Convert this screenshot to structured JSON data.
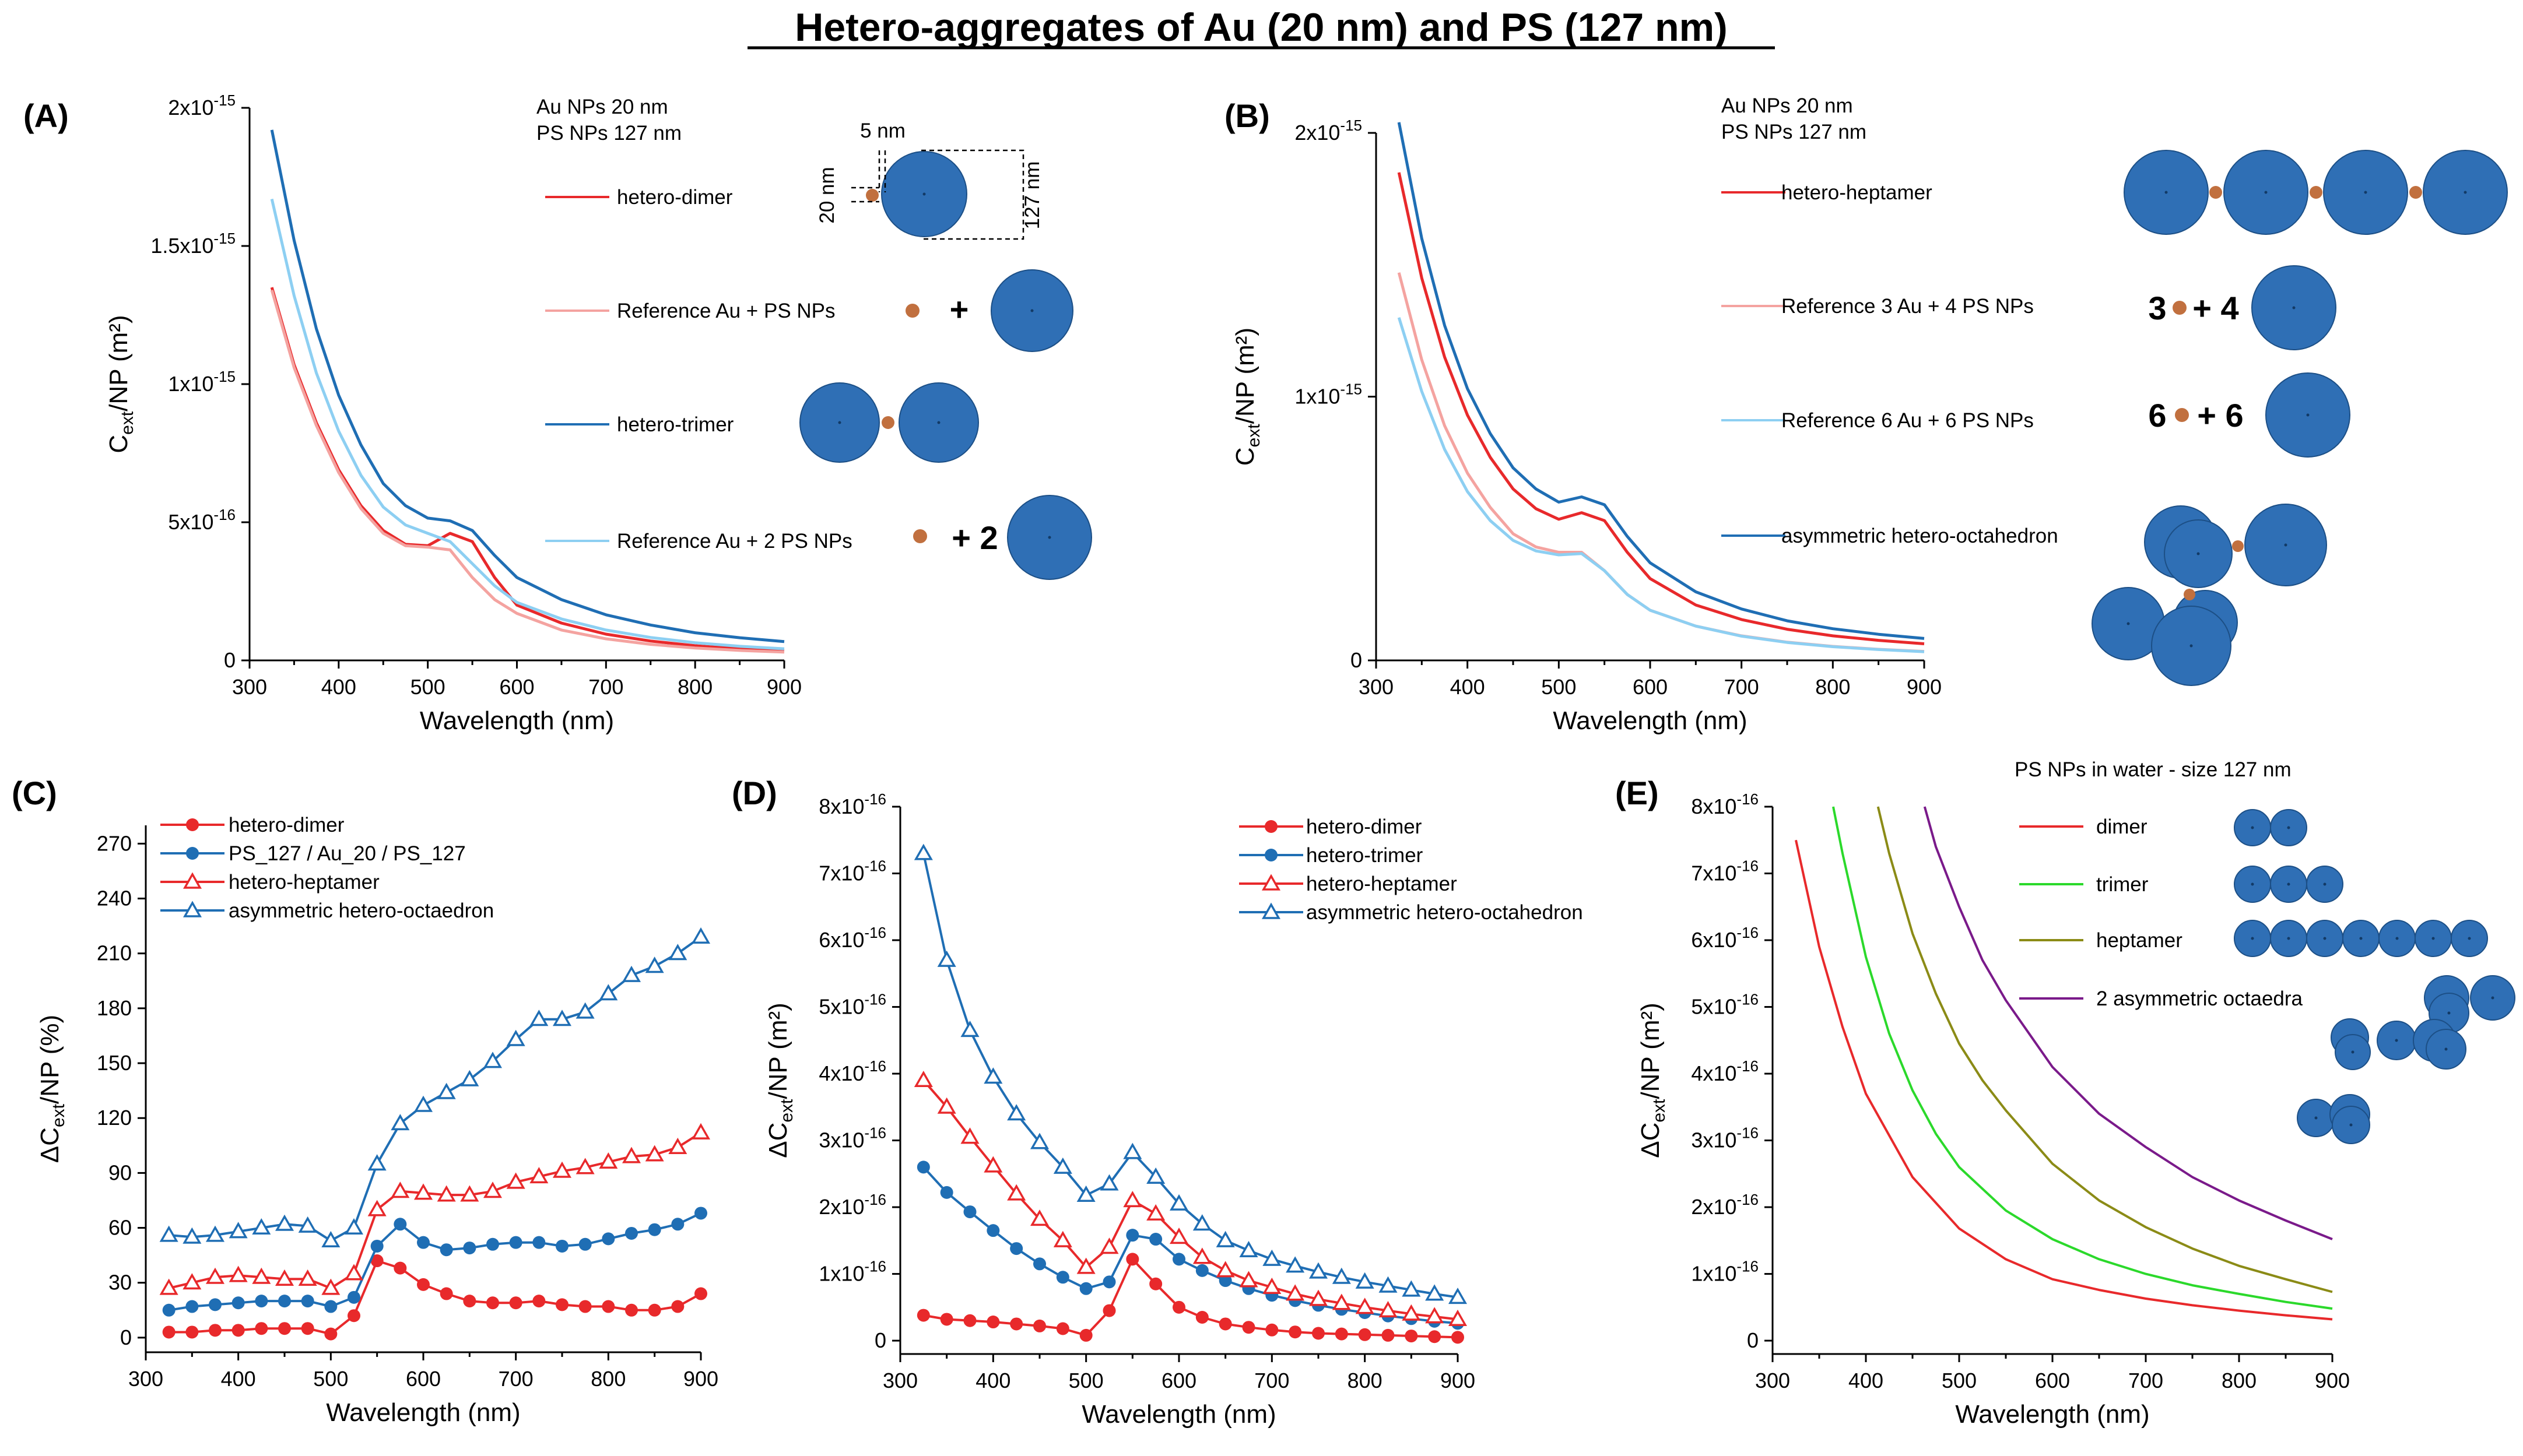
{
  "title": "Hetero-aggregates of Au (20 nm) and PS (127 nm)",
  "colors": {
    "red": "#e8292b",
    "pink": "#f4a3a0",
    "blue": "#1f6eb4",
    "lightblue": "#8dcff2",
    "green": "#2bd92b",
    "olive": "#8b8b16",
    "purple": "#7a1a8a",
    "sphere": "#2f6fb5",
    "au": "#c1703f"
  },
  "chart_data": [
    {
      "panel": "(A)",
      "type": "line",
      "xlabel": "Wavelength (nm)",
      "ylabel": "C_ext/NP (m²)",
      "xlim": [
        300,
        900
      ],
      "ylim": [
        0,
        2e-15
      ],
      "xticks": [
        300,
        400,
        500,
        600,
        700,
        800,
        900
      ],
      "yticks": [
        {
          "value": 0,
          "mant": "0",
          "exp": ""
        },
        {
          "value": 5e-16,
          "mant": "5x10",
          "exp": "-16"
        },
        {
          "value": 1e-15,
          "mant": "1x10",
          "exp": "-15"
        },
        {
          "value": 1.5e-15,
          "mant": "1.5x10",
          "exp": "-15"
        },
        {
          "value": 2e-15,
          "mant": "2x10",
          "exp": "-15"
        }
      ],
      "info": [
        "Au NPs 20 nm",
        "PS NPs 127 nm"
      ],
      "dims": [
        "5 nm",
        "20 nm",
        "127 nm"
      ],
      "legend": [
        "hetero-dimer",
        "Reference Au + PS NPs",
        "hetero-trimer",
        "Reference Au + 2 PS NPs"
      ],
      "insets": {
        "plus": "+",
        "plus2": "+ 2"
      },
      "x": [
        325,
        350,
        375,
        400,
        425,
        450,
        475,
        500,
        525,
        550,
        575,
        600,
        650,
        700,
        750,
        800,
        850,
        900
      ],
      "series": [
        {
          "name": "hetero-dimer",
          "color": "red",
          "values": [
            1.35e-15,
            1.07e-15,
            8.6e-16,
            6.9e-16,
            5.6e-16,
            4.7e-16,
            4.2e-16,
            4.15e-16,
            4.6e-16,
            4.3e-16,
            3e-16,
            2e-16,
            1.35e-16,
            9.5e-17,
            7e-17,
            5.3e-17,
            4.2e-17,
            3.5e-17
          ]
        },
        {
          "name": "Reference Au + PS NPs",
          "color": "pink",
          "values": [
            1.34e-15,
            1.06e-15,
            8.5e-16,
            6.8e-16,
            5.5e-16,
            4.6e-16,
            4.15e-16,
            4.1e-16,
            4e-16,
            3e-16,
            2.2e-16,
            1.7e-16,
            1.1e-16,
            7.8e-17,
            5.8e-17,
            4.5e-17,
            3.6e-17,
            3e-17
          ]
        },
        {
          "name": "hetero-trimer",
          "color": "blue",
          "values": [
            1.92e-15,
            1.52e-15,
            1.2e-15,
            9.6e-16,
            7.8e-16,
            6.4e-16,
            5.6e-16,
            5.15e-16,
            5.05e-16,
            4.7e-16,
            3.8e-16,
            3e-16,
            2.2e-16,
            1.65e-16,
            1.28e-16,
            1e-16,
            8.2e-17,
            6.8e-17
          ]
        },
        {
          "name": "Reference Au + 2 PS NPs",
          "color": "lightblue",
          "values": [
            1.67e-15,
            1.32e-15,
            1.04e-15,
            8.3e-16,
            6.7e-16,
            5.55e-16,
            4.9e-16,
            4.6e-16,
            4.3e-16,
            3.5e-16,
            2.7e-16,
            2.1e-16,
            1.5e-16,
            1.1e-16,
            8.3e-17,
            6.4e-17,
            5.1e-17,
            4.2e-17
          ]
        }
      ]
    },
    {
      "panel": "(B)",
      "type": "line",
      "xlabel": "Wavelength (nm)",
      "ylabel": "C_ext/NP (m²)",
      "xlim": [
        300,
        900
      ],
      "ylim": [
        0,
        2e-15
      ],
      "xticks": [
        300,
        400,
        500,
        600,
        700,
        800,
        900
      ],
      "yticks": [
        {
          "value": 0,
          "mant": "0",
          "exp": ""
        },
        {
          "value": 1e-15,
          "mant": "1x10",
          "exp": "-15"
        },
        {
          "value": 2e-15,
          "mant": "2x10",
          "exp": "-15"
        }
      ],
      "info": [
        "Au NPs 20 nm",
        "PS NPs 127 nm"
      ],
      "legend": [
        "hetero-heptamer",
        "Reference 3 Au + 4 PS NPs",
        "Reference 6 Au + 6 PS NPs",
        "asymmetric hetero-octahedron"
      ],
      "insets": {
        "n3": "3",
        "p4": "+ 4",
        "n6": "6",
        "p6": "+ 6"
      },
      "x": [
        325,
        350,
        375,
        400,
        425,
        450,
        475,
        500,
        525,
        550,
        575,
        600,
        650,
        700,
        750,
        800,
        850,
        900
      ],
      "series": [
        {
          "name": "hetero-heptamer",
          "color": "red",
          "values": [
            1.85e-15,
            1.45e-15,
            1.15e-15,
            9.3e-16,
            7.7e-16,
            6.5e-16,
            5.75e-16,
            5.35e-16,
            5.6e-16,
            5.3e-16,
            4.1e-16,
            3.1e-16,
            2.1e-16,
            1.55e-16,
            1.18e-16,
            9.3e-17,
            7.6e-17,
            6.3e-17
          ]
        },
        {
          "name": "Reference 3 Au + 4 PS NPs",
          "color": "pink",
          "values": [
            1.47e-15,
            1.14e-15,
            8.9e-16,
            7.1e-16,
            5.8e-16,
            4.8e-16,
            4.3e-16,
            4.1e-16,
            4.1e-16,
            3.4e-16,
            2.5e-16,
            1.9e-16,
            1.3e-16,
            9.3e-17,
            6.9e-17,
            5.3e-17,
            4.2e-17,
            3.4e-17
          ]
        },
        {
          "name": "Reference 6 Au + 6 PS NPs",
          "color": "lightblue",
          "values": [
            1.3e-15,
            1.02e-15,
            8e-16,
            6.4e-16,
            5.3e-16,
            4.55e-16,
            4.15e-16,
            4e-16,
            4.05e-16,
            3.4e-16,
            2.5e-16,
            1.9e-16,
            1.3e-16,
            9.2e-17,
            6.8e-17,
            5.2e-17,
            4.1e-17,
            3.3e-17
          ]
        },
        {
          "name": "asymmetric hetero-octahedron",
          "color": "blue",
          "values": [
            2.04e-15,
            1.6e-15,
            1.27e-15,
            1.03e-15,
            8.6e-16,
            7.3e-16,
            6.5e-16,
            6e-16,
            6.2e-16,
            5.9e-16,
            4.7e-16,
            3.7e-16,
            2.6e-16,
            1.95e-16,
            1.5e-16,
            1.2e-16,
            9.9e-17,
            8.3e-17
          ]
        }
      ]
    },
    {
      "panel": "(C)",
      "type": "line",
      "xlabel": "Wavelength (nm)",
      "ylabel": "ΔC_ext/NP (%)",
      "xlim": [
        300,
        900
      ],
      "ylim": [
        -8,
        280
      ],
      "xticks": [
        300,
        400,
        500,
        600,
        700,
        800,
        900
      ],
      "yticks": [
        {
          "value": 0,
          "mant": "0",
          "exp": ""
        },
        {
          "value": 30,
          "mant": "30",
          "exp": ""
        },
        {
          "value": 60,
          "mant": "60",
          "exp": ""
        },
        {
          "value": 90,
          "mant": "90",
          "exp": ""
        },
        {
          "value": 120,
          "mant": "120",
          "exp": ""
        },
        {
          "value": 150,
          "mant": "150",
          "exp": ""
        },
        {
          "value": 180,
          "mant": "180",
          "exp": ""
        },
        {
          "value": 210,
          "mant": "210",
          "exp": ""
        },
        {
          "value": 240,
          "mant": "240",
          "exp": ""
        },
        {
          "value": 270,
          "mant": "270",
          "exp": ""
        }
      ],
      "legend": [
        "hetero-dimer",
        "PS_127 / Au_20 / PS_127",
        "hetero-heptamer",
        "asymmetric hetero-octaedron"
      ],
      "x": [
        325,
        350,
        375,
        400,
        425,
        450,
        475,
        500,
        525,
        550,
        575,
        600,
        625,
        650,
        675,
        700,
        725,
        750,
        775,
        800,
        825,
        850,
        875,
        900
      ],
      "series": [
        {
          "name": "hetero-dimer",
          "color": "red",
          "marker": "circle",
          "values": [
            3,
            3,
            4,
            4,
            5,
            5,
            5,
            2,
            12,
            42,
            38,
            29,
            24,
            20,
            19,
            19,
            20,
            18,
            17,
            17,
            15,
            15,
            17,
            24
          ]
        },
        {
          "name": "PS_127 / Au_20 / PS_127",
          "color": "blue",
          "marker": "circle",
          "values": [
            15,
            17,
            18,
            19,
            20,
            20,
            20,
            17,
            22,
            50,
            62,
            52,
            48,
            49,
            51,
            52,
            52,
            50,
            51,
            54,
            57,
            59,
            62,
            68
          ]
        },
        {
          "name": "hetero-heptamer",
          "color": "red",
          "marker": "triangle",
          "values": [
            27,
            30,
            33,
            34,
            33,
            32,
            32,
            27,
            35,
            70,
            80,
            79,
            78,
            78,
            80,
            85,
            88,
            91,
            93,
            96,
            99,
            100,
            104,
            112
          ]
        },
        {
          "name": "asymmetric hetero-octaedron",
          "color": "blue",
          "marker": "triangle",
          "values": [
            56,
            55,
            56,
            58,
            60,
            62,
            61,
            53,
            60,
            95,
            117,
            127,
            134,
            141,
            151,
            163,
            174,
            174,
            178,
            188,
            198,
            203,
            210,
            219
          ]
        }
      ]
    },
    {
      "panel": "(D)",
      "type": "line",
      "xlabel": "Wavelength (nm)",
      "ylabel": "ΔC_ext/NP (m²)",
      "xlim": [
        300,
        900
      ],
      "ylim": [
        -2e-17,
        8e-16
      ],
      "xticks": [
        300,
        400,
        500,
        600,
        700,
        800,
        900
      ],
      "yticks": [
        {
          "value": 0,
          "mant": "0",
          "exp": ""
        },
        {
          "value": 1e-16,
          "mant": "1x10",
          "exp": "-16"
        },
        {
          "value": 2e-16,
          "mant": "2x10",
          "exp": "-16"
        },
        {
          "value": 3e-16,
          "mant": "3x10",
          "exp": "-16"
        },
        {
          "value": 4e-16,
          "mant": "4x10",
          "exp": "-16"
        },
        {
          "value": 5e-16,
          "mant": "5x10",
          "exp": "-16"
        },
        {
          "value": 6e-16,
          "mant": "6x10",
          "exp": "-16"
        },
        {
          "value": 7e-16,
          "mant": "7x10",
          "exp": "-16"
        },
        {
          "value": 8e-16,
          "mant": "8x10",
          "exp": "-16"
        }
      ],
      "legend": [
        "hetero-dimer",
        "hetero-trimer",
        "hetero-heptamer",
        "asymmetric hetero-octahedron"
      ],
      "x": [
        325,
        350,
        375,
        400,
        425,
        450,
        475,
        500,
        525,
        550,
        575,
        600,
        625,
        650,
        675,
        700,
        725,
        750,
        775,
        800,
        825,
        850,
        875,
        900
      ],
      "series": [
        {
          "name": "hetero-dimer",
          "color": "red",
          "marker": "circle",
          "values": [
            3.8e-17,
            3.2e-17,
            3e-17,
            2.8e-17,
            2.5e-17,
            2.2e-17,
            1.8e-17,
            8e-18,
            4.5e-17,
            1.22e-16,
            8.5e-17,
            5e-17,
            3.5e-17,
            2.5e-17,
            2e-17,
            1.6e-17,
            1.3e-17,
            1.1e-17,
            1e-17,
            9e-18,
            8e-18,
            7e-18,
            6e-18,
            5e-18
          ]
        },
        {
          "name": "hetero-trimer",
          "color": "blue",
          "marker": "circle",
          "values": [
            2.6e-16,
            2.22e-16,
            1.93e-16,
            1.65e-16,
            1.38e-16,
            1.15e-16,
            9.5e-17,
            7.8e-17,
            8.8e-17,
            1.58e-16,
            1.52e-16,
            1.22e-16,
            1.05e-16,
            9e-17,
            7.8e-17,
            6.8e-17,
            6e-17,
            5.3e-17,
            4.7e-17,
            4.2e-17,
            3.7e-17,
            3.3e-17,
            2.9e-17,
            2.6e-17
          ]
        },
        {
          "name": "hetero-heptamer",
          "color": "red",
          "marker": "triangle",
          "values": [
            3.9e-16,
            3.5e-16,
            3.05e-16,
            2.62e-16,
            2.2e-16,
            1.82e-16,
            1.5e-16,
            1.1e-16,
            1.4e-16,
            2.1e-16,
            1.9e-16,
            1.55e-16,
            1.25e-16,
            1.05e-16,
            9e-17,
            8e-17,
            7e-17,
            6.2e-17,
            5.6e-17,
            5e-17,
            4.5e-17,
            4e-17,
            3.6e-17,
            3.2e-17
          ]
        },
        {
          "name": "asymmetric hetero-octahedron",
          "color": "blue",
          "marker": "triangle",
          "values": [
            7.3e-16,
            5.7e-16,
            4.65e-16,
            3.95e-16,
            3.4e-16,
            2.97e-16,
            2.6e-16,
            2.18e-16,
            2.35e-16,
            2.82e-16,
            2.45e-16,
            2.05e-16,
            1.75e-16,
            1.5e-16,
            1.35e-16,
            1.22e-16,
            1.12e-16,
            1.03e-16,
            9.5e-17,
            8.8e-17,
            8.2e-17,
            7.6e-17,
            7e-17,
            6.5e-17
          ]
        }
      ]
    },
    {
      "panel": "(E)",
      "type": "line",
      "xlabel": "Wavelength (nm)",
      "ylabel": "ΔC_ext/NP (m²)",
      "xlim": [
        300,
        900
      ],
      "ylim": [
        -2e-17,
        8e-16
      ],
      "xticks": [
        300,
        400,
        500,
        600,
        700,
        800,
        900
      ],
      "yticks": [
        {
          "value": 0,
          "mant": "0",
          "exp": ""
        },
        {
          "value": 1e-16,
          "mant": "1x10",
          "exp": "-16"
        },
        {
          "value": 2e-16,
          "mant": "2x10",
          "exp": "-16"
        },
        {
          "value": 3e-16,
          "mant": "3x10",
          "exp": "-16"
        },
        {
          "value": 4e-16,
          "mant": "4x10",
          "exp": "-16"
        },
        {
          "value": 5e-16,
          "mant": "5x10",
          "exp": "-16"
        },
        {
          "value": 6e-16,
          "mant": "6x10",
          "exp": "-16"
        },
        {
          "value": 7e-16,
          "mant": "7x10",
          "exp": "-16"
        },
        {
          "value": 8e-16,
          "mant": "8x10",
          "exp": "-16"
        }
      ],
      "info": [
        "PS NPs in water - size 127 nm"
      ],
      "legend": [
        "dimer",
        "trimer",
        "heptamer",
        "2 asymmetric octaedra"
      ],
      "series": [
        {
          "name": "dimer",
          "color": "red",
          "x": [
            325,
            350,
            375,
            400,
            450,
            500,
            550,
            600,
            650,
            700,
            750,
            800,
            850,
            900
          ],
          "values": [
            7.5e-16,
            5.9e-16,
            4.7e-16,
            3.7e-16,
            2.45e-16,
            1.68e-16,
            1.22e-16,
            9.2e-17,
            7.6e-17,
            6.3e-17,
            5.3e-17,
            4.5e-17,
            3.8e-17,
            3.2e-17
          ]
        },
        {
          "name": "trimer",
          "color": "green",
          "x": [
            365,
            375,
            400,
            425,
            450,
            475,
            500,
            550,
            600,
            650,
            700,
            750,
            800,
            850,
            900
          ],
          "values": [
            8e-16,
            7.3e-16,
            5.75e-16,
            4.6e-16,
            3.75e-16,
            3.1e-16,
            2.6e-16,
            1.95e-16,
            1.52e-16,
            1.22e-16,
            1e-16,
            8.3e-17,
            7e-17,
            5.8e-17,
            4.8e-17
          ]
        },
        {
          "name": "heptamer",
          "color": "olive",
          "x": [
            413,
            425,
            450,
            475,
            500,
            525,
            550,
            600,
            650,
            700,
            750,
            800,
            850,
            900
          ],
          "values": [
            8e-16,
            7.3e-16,
            6.1e-16,
            5.2e-16,
            4.45e-16,
            3.9e-16,
            3.45e-16,
            2.65e-16,
            2.1e-16,
            1.7e-16,
            1.38e-16,
            1.12e-16,
            9.2e-17,
            7.3e-17
          ]
        },
        {
          "name": "2 asymmetric octaedra",
          "color": "purple",
          "x": [
            463,
            475,
            500,
            525,
            550,
            600,
            650,
            700,
            750,
            800,
            850,
            900
          ],
          "values": [
            8e-16,
            7.4e-16,
            6.5e-16,
            5.7e-16,
            5.1e-16,
            4.1e-16,
            3.4e-16,
            2.9e-16,
            2.45e-16,
            2.1e-16,
            1.8e-16,
            1.52e-16
          ]
        }
      ]
    }
  ]
}
